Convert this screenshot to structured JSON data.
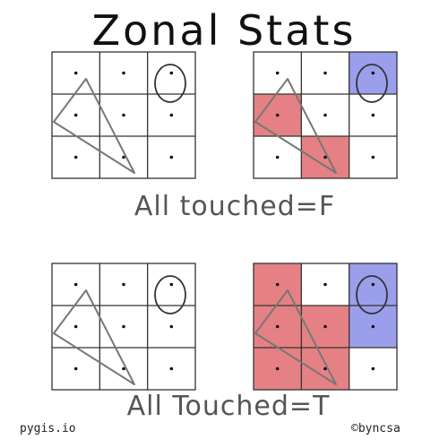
{
  "title": "Zonal Stats",
  "caption_false": "All touched=F",
  "caption_true": "All Touched=T",
  "footer_left": "pygis.io",
  "footer_right": "©byncsa",
  "colors": {
    "polygon_cells": "#e06b6f",
    "circle_cells": "#8a8ee8",
    "triangle": "#777777",
    "ink": "#111111"
  },
  "panels": [
    {
      "id": "top-left",
      "highlight": []
    },
    {
      "id": "top-right",
      "highlight": [
        {
          "row": 0,
          "col": 2,
          "color": "blue"
        },
        {
          "row": 1,
          "col": 0,
          "color": "red"
        },
        {
          "row": 2,
          "col": 1,
          "color": "red"
        }
      ]
    },
    {
      "id": "bottom-left",
      "highlight": []
    },
    {
      "id": "bottom-right",
      "highlight": [
        {
          "row": 0,
          "col": 0,
          "color": "red"
        },
        {
          "row": 1,
          "col": 0,
          "color": "red"
        },
        {
          "row": 1,
          "col": 1,
          "color": "red"
        },
        {
          "row": 2,
          "col": 0,
          "color": "red"
        },
        {
          "row": 2,
          "col": 1,
          "color": "red"
        },
        {
          "row": 0,
          "col": 2,
          "color": "blue"
        },
        {
          "row": 1,
          "col": 2,
          "color": "blue"
        }
      ]
    }
  ]
}
